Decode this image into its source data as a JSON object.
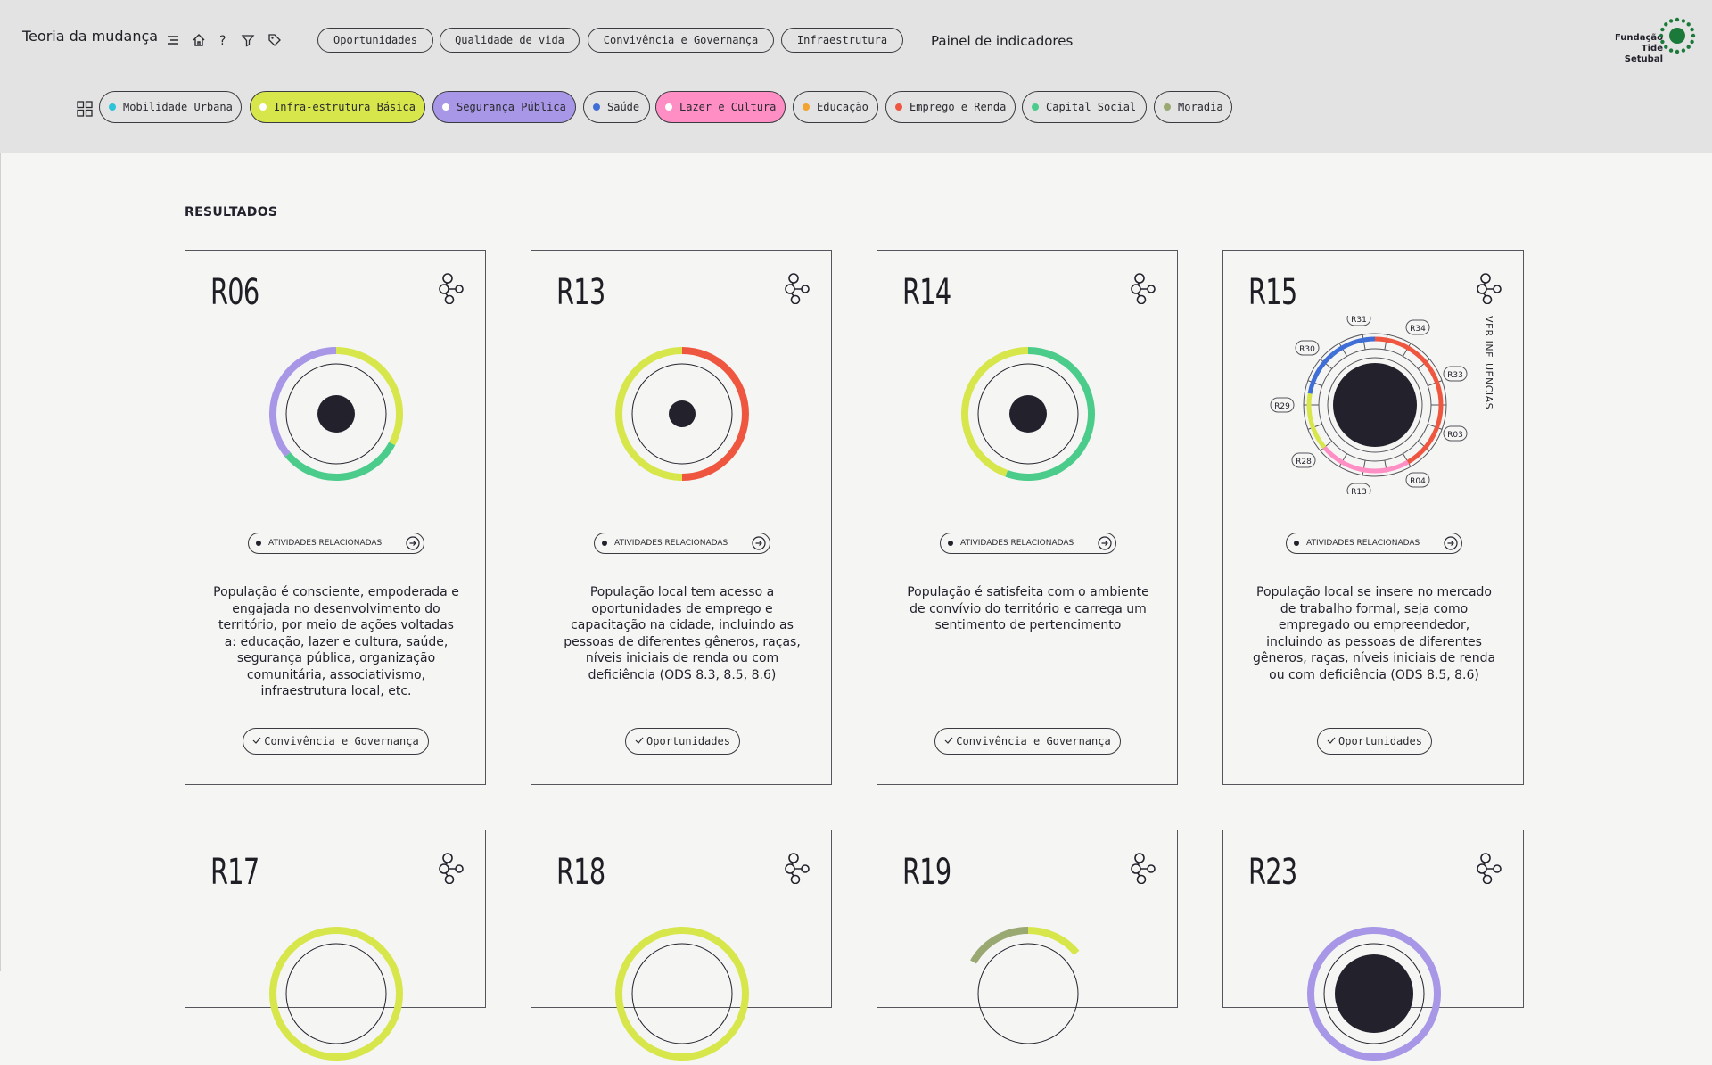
{
  "header": {
    "title": "Teoria da mudança",
    "nav": [
      "Oportunidades",
      "Qualidade de vida",
      "Convivência e Governança",
      "Infraestrutura"
    ],
    "painel": "Painel de indicadores",
    "logo": [
      "Fundação",
      "Tide",
      "Setubal"
    ]
  },
  "icons": [
    "menu-icon",
    "home-icon",
    "help-icon",
    "filter-icon",
    "tag-icon",
    "grid-icon",
    "network-icon",
    "arrow-right-icon"
  ],
  "filters": [
    {
      "label": "Mobilidade Urbana",
      "dot": "#2bc4d8",
      "bg": "#e3e3e3"
    },
    {
      "label": "Infra-estrutura Básica",
      "dot": "#ffffff",
      "bg": "#d7e64a"
    },
    {
      "label": "Segurança Pública",
      "dot": "#ffffff",
      "bg": "#a897e6"
    },
    {
      "label": "Saúde",
      "dot": "#3f6fd6",
      "bg": "#e3e3e3"
    },
    {
      "label": "Lazer e Cultura",
      "dot": "#ffffff",
      "bg": "#ff8ec4"
    },
    {
      "label": "Educação",
      "dot": "#f2a430",
      "bg": "#e3e3e3"
    },
    {
      "label": "Emprego e Renda",
      "dot": "#ef5640",
      "bg": "#e3e3e3"
    },
    {
      "label": "Capital Social",
      "dot": "#4ccc8a",
      "bg": "#e3e3e3"
    },
    {
      "label": "Moradia",
      "dot": "#9aa872",
      "bg": "#e3e3e3"
    }
  ],
  "section_title": "RESULTADOS",
  "atividades_label": "ATIVIDADES RELACIONADAS",
  "ver_influencias": "VER INFLUÊNCIAS",
  "cards": [
    {
      "code": "R06",
      "desc": "População é consciente, empoderada e engajada no desenvolvimento do território, por meio de ações voltadas a: educação, lazer e cultura, saúde, segurança pública, organização comunitária, associativismo, infraestrutura local, etc.",
      "tag": "Convivência e Governança"
    },
    {
      "code": "R13",
      "desc": "População local tem acesso a oportunidades de emprego e capacitação na cidade, incluindo as pessoas de diferentes gêneros, raças, níveis iniciais de renda ou com deficiência (ODS 8.3, 8.5, 8.6)",
      "tag": "Oportunidades"
    },
    {
      "code": "R14",
      "desc": "População é satisfeita com o ambiente de convívio do território e carrega um sentimento de pertencimento",
      "tag": "Convivência e Governança"
    },
    {
      "code": "R15",
      "desc": "População local se insere no mercado de trabalho formal, seja como empregado ou empreendedor, incluindo as pessoas de diferentes gêneros, raças, níveis iniciais de renda ou com deficiência (ODS 8.5, 8.6)",
      "tag": "Oportunidades"
    },
    {
      "code": "R17"
    },
    {
      "code": "R18"
    },
    {
      "code": "R19"
    },
    {
      "code": "R23"
    }
  ],
  "influences": [
    "R31",
    "R34",
    "R33",
    "R03",
    "R04",
    "R13",
    "R28",
    "R29",
    "R30"
  ]
}
